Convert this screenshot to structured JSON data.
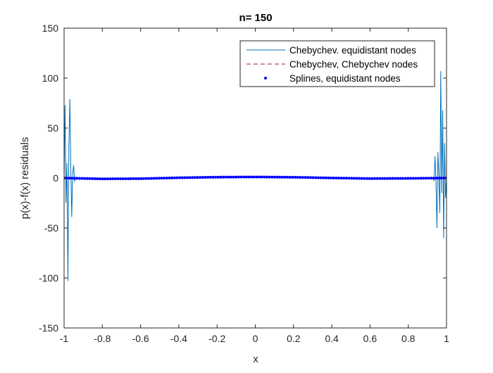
{
  "chart_data": {
    "type": "line",
    "title": "n= 150",
    "xlabel": "x",
    "ylabel": "p(x)-f(x) residuals",
    "xlim": [
      -1,
      1
    ],
    "ylim": [
      -150,
      150
    ],
    "xticks": [
      -1,
      -0.8,
      -0.6,
      -0.4,
      -0.2,
      0,
      0.2,
      0.4,
      0.6,
      0.8,
      1
    ],
    "xtick_labels": [
      "-1",
      "-0.8",
      "-0.6",
      "-0.4",
      "-0.2",
      "0",
      "0.2",
      "0.4",
      "0.6",
      "0.8",
      "1"
    ],
    "yticks": [
      -150,
      -100,
      -50,
      0,
      50,
      100,
      150
    ],
    "ytick_labels": [
      "-150",
      "-100",
      "-50",
      "0",
      "50",
      "100",
      "150"
    ],
    "grid": false,
    "legend_position": "top-right",
    "series": [
      {
        "name": "Chebychev. equidistant nodes",
        "style": "solid-line",
        "color": "#0072BD",
        "x": [
          -1.0,
          -0.995,
          -0.99,
          -0.985,
          -0.98,
          -0.975,
          -0.97,
          -0.965,
          -0.96,
          -0.955,
          -0.95,
          -0.945,
          -0.94,
          -0.935,
          -0.93,
          -0.92,
          -0.9,
          -0.8,
          -0.6,
          -0.4,
          -0.2,
          0.0,
          0.2,
          0.4,
          0.6,
          0.8,
          0.9,
          0.92,
          0.93,
          0.935,
          0.94,
          0.945,
          0.95,
          0.955,
          0.96,
          0.965,
          0.97,
          0.975,
          0.98,
          0.985,
          0.99,
          0.995,
          1.0
        ],
        "y": [
          0,
          73,
          -25,
          15,
          -103,
          30,
          79,
          10,
          -39,
          5,
          13,
          -3,
          -1,
          1,
          0,
          0,
          -0.3,
          -0.8,
          -0.6,
          0.3,
          0.9,
          1.1,
          0.8,
          0.1,
          -0.5,
          -0.3,
          0,
          0,
          0,
          -3,
          22,
          -5,
          -50,
          26,
          2,
          -35,
          107,
          -15,
          68,
          -60,
          35,
          -20,
          0
        ]
      },
      {
        "name": "Chebychev, Chebychev nodes",
        "style": "dashed-line",
        "color": "#A2142F",
        "x": [
          -1.0,
          -0.8,
          -0.6,
          -0.4,
          -0.2,
          0.0,
          0.2,
          0.4,
          0.6,
          0.8,
          1.0
        ],
        "y": [
          0,
          -0.8,
          -0.6,
          0.3,
          0.9,
          1.1,
          0.8,
          0.1,
          -0.5,
          -0.3,
          0
        ]
      },
      {
        "name": "Splines, equidistant nodes",
        "style": "dot-markers",
        "color": "#0000FF",
        "x_range": [
          -1,
          1
        ],
        "count": 150,
        "y_profile_x": [
          -1.0,
          -0.8,
          -0.6,
          -0.4,
          -0.2,
          0.0,
          0.2,
          0.4,
          0.6,
          0.8,
          1.0
        ],
        "y_profile": [
          0,
          -0.8,
          -0.6,
          0.3,
          0.9,
          1.1,
          0.8,
          0.1,
          -0.5,
          -0.3,
          0
        ]
      }
    ]
  }
}
